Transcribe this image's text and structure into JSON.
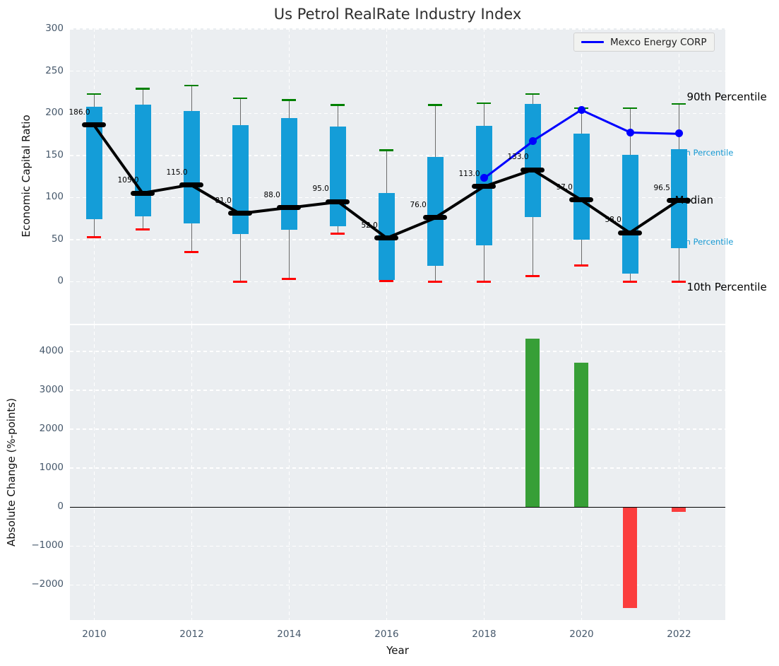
{
  "legend": {
    "label": "Mexco Energy CORP"
  },
  "colors": {
    "axes_bg": "#ebeef1",
    "grid": "#ffffff",
    "box_fill": "#149dd8",
    "whisker": "#6b6b6b",
    "p90_cap": "#008000",
    "p10_cap": "#ff0000",
    "median": "#000000",
    "mexco_line": "#0000ff",
    "bar_positive": "#379f37",
    "bar_negative": "#fb3d3d",
    "tick_label": "#46586b",
    "percentile_label_blue": "#189ad3",
    "zero_line": "#000000"
  },
  "chart_data": [
    {
      "type": "boxplot",
      "title": "Us Petrol RealRate Industry Index",
      "ylabel": "Economic Capital Ratio",
      "ylim": [
        -50,
        301
      ],
      "xlim": [
        2009.5,
        2022.95
      ],
      "yticks": [
        0,
        50,
        100,
        150,
        200,
        250,
        300
      ],
      "ytick_labels": [
        "0",
        "50",
        "100",
        "150",
        "200",
        "250",
        "300"
      ],
      "xgrid_years": [
        2010,
        2012,
        2014,
        2016,
        2018,
        2020,
        2022
      ],
      "grid": "white-dashed",
      "legend_position": "upper right",
      "years": [
        2010,
        2011,
        2012,
        2013,
        2014,
        2015,
        2016,
        2017,
        2018,
        2019,
        2020,
        2021,
        2022
      ],
      "percentile_90": [
        223,
        229,
        233,
        218,
        216,
        210,
        156,
        210,
        212,
        223,
        206,
        206,
        211
      ],
      "quartile_75": [
        208,
        210,
        203,
        186,
        194,
        184,
        105,
        148,
        185,
        211,
        176,
        151,
        157
      ],
      "median": [
        186,
        105,
        115,
        81,
        88,
        95,
        52,
        76,
        113,
        133,
        97,
        58,
        96.5
      ],
      "median_labels": [
        "186.0",
        "105.0",
        "115.0",
        "81.0",
        "88.0",
        "95.0",
        "52.0",
        "76.0",
        "113.0",
        "133.0",
        "97.0",
        "58.0",
        "96.5"
      ],
      "quartile_25": [
        74,
        78,
        69,
        57,
        62,
        66,
        2,
        19,
        43,
        77,
        50,
        10,
        40
      ],
      "percentile_10": [
        53,
        62,
        35,
        0,
        3.5,
        57,
        1,
        0,
        0,
        7,
        19,
        0,
        0
      ],
      "series": [
        {
          "name": "Mexco Energy CORP",
          "x": [
            2018,
            2019,
            2020,
            2021,
            2022
          ],
          "y": [
            123,
            167,
            204,
            177.5,
            176
          ]
        }
      ],
      "annotations": [
        {
          "text": "90th Percentile",
          "value": 219,
          "style": "dark",
          "dx": 11
        },
        {
          "text": "75th Percentile",
          "value": 153,
          "style": "blue",
          "dx": -10
        },
        {
          "text": "Median",
          "value": 96,
          "style": "dark",
          "dx": -6
        },
        {
          "text": "25th Percentile",
          "value": 47,
          "style": "blue",
          "dx": -10
        },
        {
          "text": "10th Percentile",
          "value": -7,
          "style": "dark",
          "dx": 11
        }
      ]
    },
    {
      "type": "bar",
      "ylabel": "Absolute Change (%-points)",
      "xlabel": "Year",
      "ylim": [
        -2900,
        4670
      ],
      "yticks": [
        -2000,
        -1000,
        0,
        1000,
        2000,
        3000,
        4000
      ],
      "ytick_labels": [
        "−2000",
        "−1000",
        "0",
        "1000",
        "2000",
        "3000",
        "4000"
      ],
      "xticks": [
        2010,
        2012,
        2014,
        2016,
        2018,
        2020,
        2022
      ],
      "xtick_labels": [
        "2010",
        "2012",
        "2014",
        "2016",
        "2018",
        "2020",
        "2022"
      ],
      "x": [
        2019,
        2020,
        2021,
        2022
      ],
      "values": [
        4330,
        3715,
        -2600,
        -115
      ],
      "bar_colors": [
        "positive",
        "positive",
        "negative",
        "negative"
      ],
      "zero_line": true
    }
  ]
}
